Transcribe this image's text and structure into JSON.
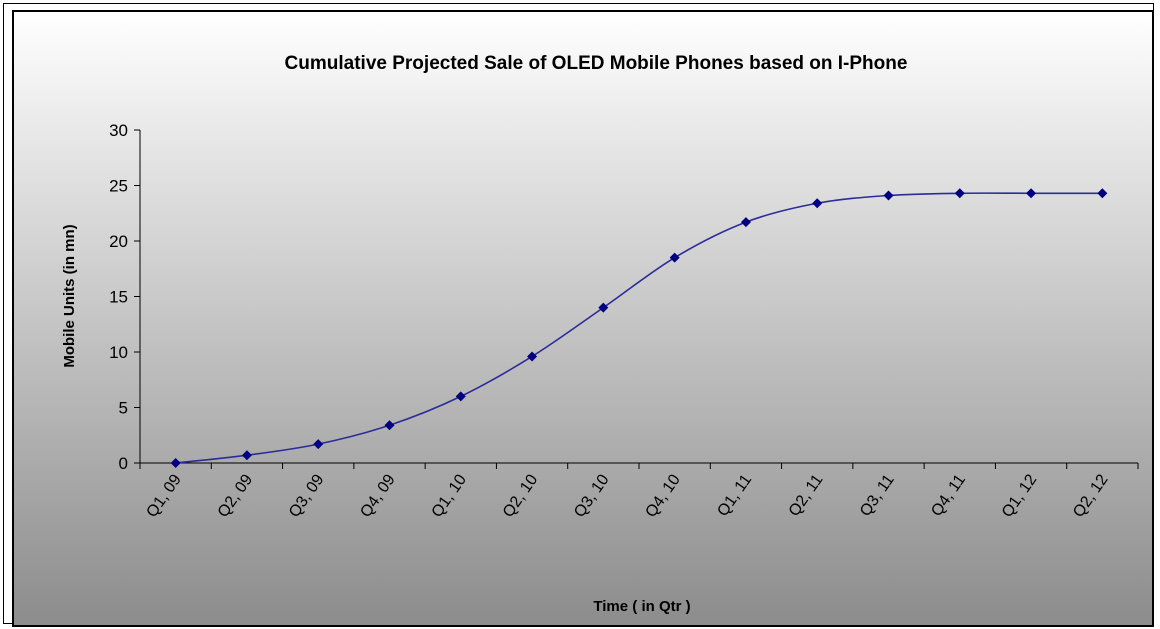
{
  "chart_data": {
    "type": "line",
    "title": "Cumulative Projected Sale of OLED Mobile Phones based on I-Phone",
    "xlabel": "Time ( in Qtr )",
    "ylabel": "Mobile Units (in mn)",
    "ylim": [
      0,
      30
    ],
    "yticks": [
      0,
      5,
      10,
      15,
      20,
      25,
      30
    ],
    "grid": false,
    "legend": "none",
    "categories": [
      "Q1, 09",
      "Q2, 09",
      "Q3, 09",
      "Q4, 09",
      "Q1, 10",
      "Q2, 10",
      "Q3, 10",
      "Q4, 10",
      "Q1, 11",
      "Q2, 11",
      "Q3, 11",
      "Q4, 11",
      "Q1, 12",
      "Q2, 12"
    ],
    "series": [
      {
        "values": [
          0.0,
          0.7,
          1.7,
          3.4,
          6.0,
          9.6,
          14.0,
          18.5,
          21.7,
          23.4,
          24.1,
          24.3,
          24.3,
          24.3
        ],
        "color": "#1a1a8c",
        "marker_color": "#000080"
      }
    ],
    "colors": {
      "line": "#2b2b99",
      "marker": "#000080",
      "plot_gradient_top": "#ffffff",
      "plot_gradient_bottom": "#8c8c8c"
    }
  }
}
